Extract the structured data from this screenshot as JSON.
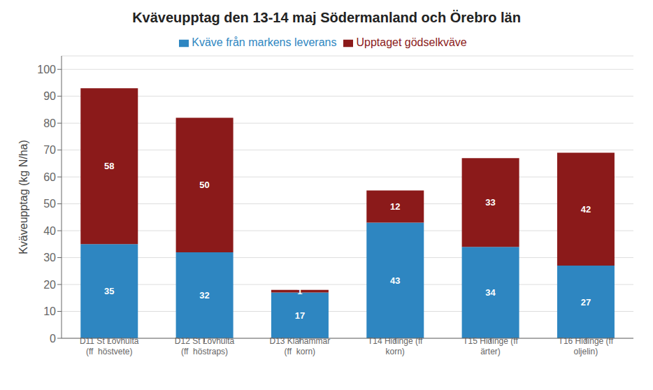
{
  "chart_data": {
    "type": "bar",
    "title": "Kväveupptag den 13-14 maj Södermanland och Örebro län",
    "ylabel": "Kväveupptag (kg N/ha)",
    "categories": [
      "D11 St Lövhulta\n(ff  höstvete)",
      "D12 St Lövhulta\n(ff  höstraps)",
      "D13 Klahammar\n(ff  korn)",
      "T14 Hidinge (ff\nkorn)",
      "T15 Hidinge (ff\närter)",
      "T16 Hidinge (ff\noljelin)"
    ],
    "series": [
      {
        "name": "Kväve från markens leverans",
        "color": "#2E86C1",
        "values": [
          35,
          32,
          17,
          43,
          34,
          27
        ]
      },
      {
        "name": "Upptaget gödselkväve",
        "color": "#8B1A1A",
        "values": [
          58,
          50,
          1,
          12,
          33,
          42
        ]
      }
    ],
    "stacked": true,
    "ylim": [
      0,
      105
    ],
    "yticks": [
      0,
      10,
      20,
      30,
      40,
      50,
      60,
      70,
      80,
      90,
      100
    ],
    "grid": true,
    "legend": "top",
    "data_labels": true
  }
}
